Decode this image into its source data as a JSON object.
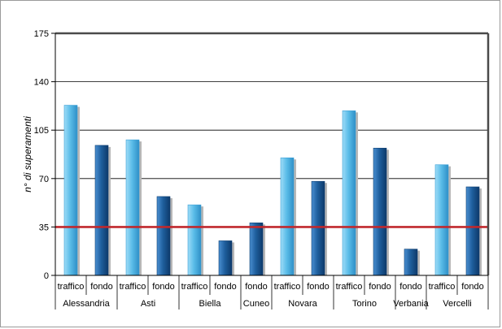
{
  "chart_data": {
    "type": "bar",
    "title": "",
    "xlabel": "",
    "ylabel": "n° di superamenti",
    "ylim": [
      0,
      175
    ],
    "yticks": [
      0,
      35,
      70,
      105,
      140,
      175
    ],
    "grid": true,
    "legend": "none",
    "threshold": {
      "value": 35,
      "color": "#c0282d"
    },
    "colors": {
      "traffico": "#5bbde8",
      "fondo": "#1f5f9e"
    },
    "groups": [
      {
        "name": "Alessandria",
        "bars": [
          {
            "label": "traffico",
            "value": 123
          },
          {
            "label": "fondo",
            "value": 94
          }
        ]
      },
      {
        "name": "Asti",
        "bars": [
          {
            "label": "traffico",
            "value": 98
          },
          {
            "label": "fondo",
            "value": 57
          }
        ]
      },
      {
        "name": "Biella",
        "bars": [
          {
            "label": "traffico",
            "value": 51
          },
          {
            "label": "fondo",
            "value": 25
          }
        ]
      },
      {
        "name": "Cuneo",
        "bars": [
          {
            "label": "fondo",
            "value": 38
          }
        ]
      },
      {
        "name": "Novara",
        "bars": [
          {
            "label": "traffico",
            "value": 85
          },
          {
            "label": "fondo",
            "value": 68
          }
        ]
      },
      {
        "name": "Torino",
        "bars": [
          {
            "label": "traffico",
            "value": 119
          },
          {
            "label": "fondo",
            "value": 92
          }
        ]
      },
      {
        "name": "Verbania",
        "bars": [
          {
            "label": "fondo",
            "value": 19
          }
        ]
      },
      {
        "name": "Vercelli",
        "bars": [
          {
            "label": "traffico",
            "value": 80
          },
          {
            "label": "fondo",
            "value": 64
          }
        ]
      }
    ]
  }
}
